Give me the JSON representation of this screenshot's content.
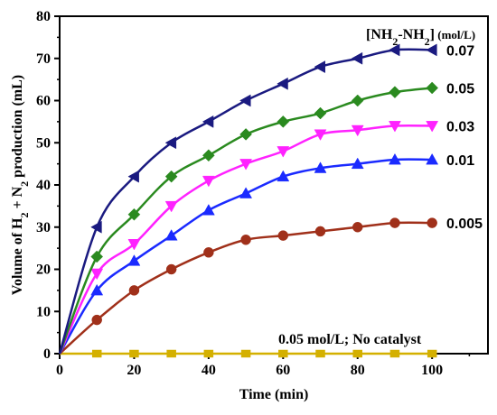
{
  "chart_data": {
    "type": "line",
    "title": "",
    "xlabel": "Time (min)",
    "ylabel_parts": [
      "Volume of H",
      "2",
      " + N",
      "2",
      " production (mL)"
    ],
    "xlim": [
      0,
      115
    ],
    "ylim": [
      0,
      80
    ],
    "x_ticks": [
      0,
      20,
      40,
      60,
      80,
      100
    ],
    "y_ticks": [
      0,
      10,
      20,
      30,
      40,
      50,
      60,
      70,
      80
    ],
    "legend_title_parts": [
      "[NH",
      "2",
      "-NH",
      "2",
      "]",
      " (mol/L)"
    ],
    "annotation": "0.05 mol/L; No catalyst",
    "series": [
      {
        "name": "0.07",
        "color": "#1a1a80",
        "marker": "triangle-left",
        "x": [
          0,
          10,
          20,
          30,
          40,
          50,
          60,
          70,
          80,
          90,
          100
        ],
        "y": [
          0,
          30,
          42,
          50,
          55,
          60,
          64,
          68,
          70,
          72,
          72
        ]
      },
      {
        "name": "0.05",
        "color": "#2a8a1f",
        "marker": "diamond",
        "x": [
          0,
          10,
          20,
          30,
          40,
          50,
          60,
          70,
          80,
          90,
          100
        ],
        "y": [
          0,
          23,
          33,
          42,
          47,
          52,
          55,
          57,
          60,
          62,
          63
        ]
      },
      {
        "name": "0.03",
        "color": "#ff22ff",
        "marker": "triangle-down",
        "x": [
          0,
          10,
          20,
          30,
          40,
          50,
          60,
          70,
          80,
          90,
          100
        ],
        "y": [
          0,
          19,
          26,
          35,
          41,
          45,
          48,
          52,
          53,
          54,
          54
        ]
      },
      {
        "name": "0.01",
        "color": "#1a2aff",
        "marker": "triangle-up",
        "x": [
          0,
          10,
          20,
          30,
          40,
          50,
          60,
          70,
          80,
          90,
          100
        ],
        "y": [
          0,
          15,
          22,
          28,
          34,
          38,
          42,
          44,
          45,
          46,
          46
        ]
      },
      {
        "name": "0.005",
        "color": "#a0301a",
        "marker": "circle",
        "x": [
          0,
          10,
          20,
          30,
          40,
          50,
          60,
          70,
          80,
          90,
          100
        ],
        "y": [
          0,
          8,
          15,
          20,
          24,
          27,
          28,
          29,
          30,
          31,
          31
        ]
      },
      {
        "name": "",
        "color": "#d4b000",
        "marker": "square",
        "x": [
          0,
          10,
          20,
          30,
          40,
          50,
          60,
          70,
          80,
          90,
          100
        ],
        "y": [
          0,
          0,
          0,
          0,
          0,
          0,
          0,
          0,
          0,
          0,
          0
        ]
      }
    ]
  }
}
